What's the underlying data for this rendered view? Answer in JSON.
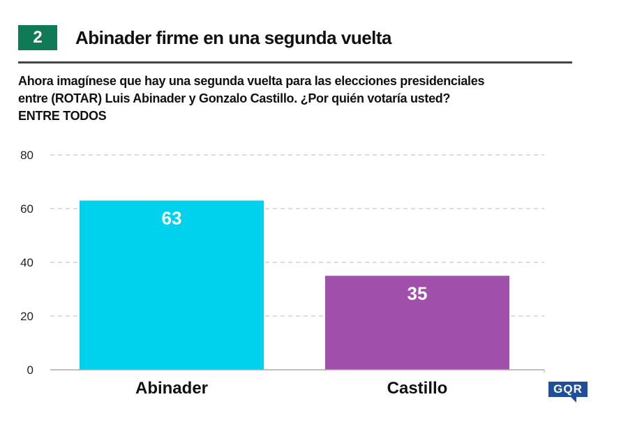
{
  "header": {
    "number": "2",
    "title": "Abinader firme en una segunda vuelta"
  },
  "question": {
    "line1": "Ahora imagínese que hay una segunda vuelta para las elecciones presidenciales",
    "line2": "entre (ROTAR) Luis Abinader y Gonzalo Castillo. ¿Por quién votaría usted?",
    "line3": "ENTRE TODOS"
  },
  "logo": "GQR",
  "chart_data": {
    "type": "bar",
    "categories": [
      "Abinader",
      "Castillo"
    ],
    "values": [
      63,
      35
    ],
    "colors": [
      "#00d2ee",
      "#a050aa"
    ],
    "ylim": [
      0,
      80
    ],
    "yticks": [
      0,
      20,
      40,
      60,
      80
    ],
    "grid": true,
    "title": "",
    "xlabel": "",
    "ylabel": ""
  }
}
